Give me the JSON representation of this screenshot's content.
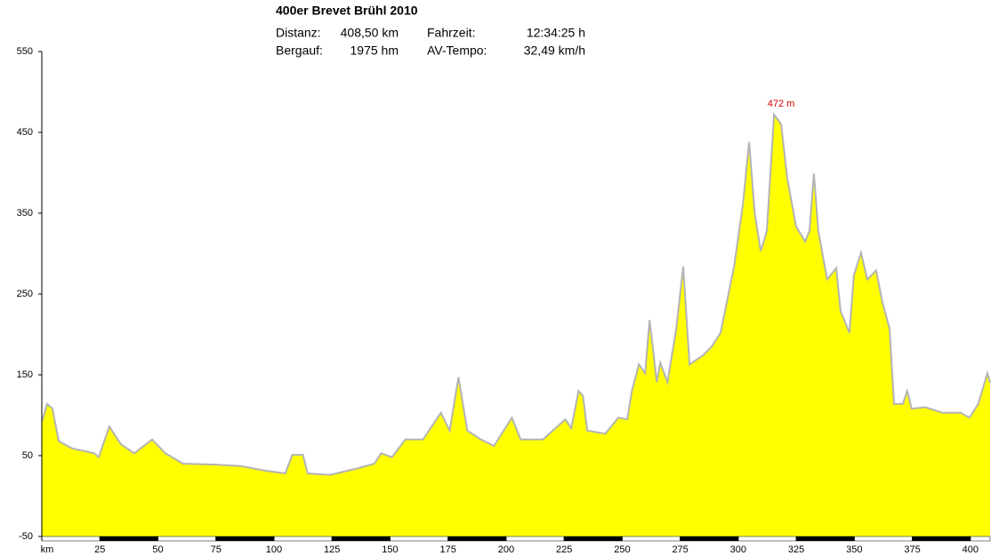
{
  "chart_data": {
    "type": "area",
    "title": "400er Brevet Brühl 2010",
    "stats": [
      {
        "label": "Distanz:",
        "value": "408,50 km"
      },
      {
        "label": "Fahrzeit:",
        "value": "12:34:25 h"
      },
      {
        "label": "Bergauf:",
        "value": "1975 hm"
      },
      {
        "label": "AV-Tempo:",
        "value": "32,49 km/h"
      }
    ],
    "annotation": "472 m",
    "color": "#ffff00",
    "line_color": "#b4b4b4",
    "x": [
      0,
      2.3,
      4.6,
      7.3,
      13,
      22.6,
      24.5,
      29.1,
      34.1,
      39.8,
      47.5,
      53.2,
      60.9,
      74.3,
      85.7,
      97.2,
      104.9,
      107.9,
      112.5,
      114.5,
      124,
      135.5,
      143.2,
      146.2,
      150.8,
      156.6,
      164.2,
      171.9,
      175.7,
      179.5,
      183.3,
      189.1,
      194.8,
      202.5,
      206.3,
      215.9,
      225.5,
      228.1,
      231.2,
      233.1,
      235,
      242.7,
      248.4,
      252.2,
      254.2,
      257.2,
      259.9,
      261.8,
      264.9,
      266.4,
      269.5,
      273.3,
      276.3,
      279,
      284.8,
      288.6,
      292.4,
      298.2,
      302,
      304.7,
      307.1,
      309.7,
      312.3,
      315.4,
      318.5,
      321.1,
      324.9,
      328.8,
      330.7,
      332.6,
      334.5,
      338.3,
      342.2,
      344.1,
      347.9,
      349.8,
      352.9,
      355.6,
      359.4,
      362.1,
      365.2,
      367.1,
      370.9,
      372.8,
      374.7,
      380.5,
      388.1,
      395.8,
      399.6,
      403.4,
      407.3,
      408.5
    ],
    "values": [
      92,
      114,
      108,
      68,
      59,
      53,
      48,
      86,
      64,
      53,
      70,
      53,
      40,
      39,
      37,
      31,
      28,
      51,
      51,
      28,
      26,
      34,
      40,
      53,
      48,
      70,
      70,
      103,
      81,
      147,
      81,
      70,
      62,
      97,
      70,
      70,
      95,
      84,
      130,
      124,
      81,
      77,
      97,
      95,
      130,
      163,
      152,
      218,
      141,
      165,
      141,
      207,
      284,
      163,
      174,
      185,
      202,
      284,
      361,
      438,
      350,
      303,
      328,
      472,
      460,
      394,
      334,
      315,
      328,
      399,
      328,
      268,
      282,
      229,
      202,
      273,
      301,
      268,
      279,
      240,
      207,
      114,
      114,
      130,
      108,
      110,
      103,
      103,
      97,
      114,
      152,
      140
    ],
    "xlim": [
      0,
      408.5
    ],
    "ylim": [
      -50,
      550
    ],
    "yticks": [
      -50,
      50,
      150,
      250,
      350,
      450,
      550
    ],
    "xticks": [
      {
        "value": 0,
        "label": "km"
      },
      25,
      50,
      75,
      100,
      125,
      150,
      175,
      200,
      225,
      250,
      275,
      300,
      325,
      350,
      375,
      400
    ]
  }
}
